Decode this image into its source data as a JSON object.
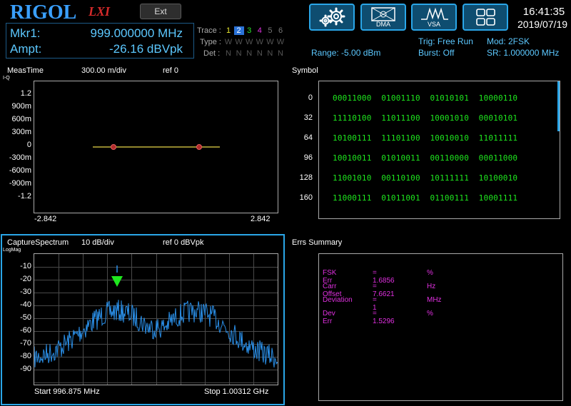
{
  "brand": {
    "logo": "RIGOL",
    "lxi": "LXI"
  },
  "topbar": {
    "ext_label": "Ext",
    "buttons": [
      {
        "name": "settings",
        "label": ""
      },
      {
        "name": "dma",
        "label": "DMA"
      },
      {
        "name": "vsa",
        "label": "VSA"
      },
      {
        "name": "layout",
        "label": ""
      }
    ],
    "time": "16:41:35",
    "date": "2019/07/19"
  },
  "marker": {
    "mkr_label": "Mkr1:",
    "mkr_value": "999.000000 MHz",
    "ampt_label": "Ampt:",
    "ampt_value": "-26.16 dBVpk"
  },
  "trace": {
    "trace_label": "Trace :",
    "type_label": "Type :",
    "det_label": "Det :",
    "numbers": [
      "1",
      "2",
      "3",
      "4",
      "5",
      "6"
    ],
    "number_colors": [
      "#e8e830",
      "#2aa6e8",
      "#2ee82e",
      "#e030e0",
      "#777777",
      "#777777"
    ],
    "active_index": 1,
    "types": [
      "W",
      "W",
      "W",
      "W",
      "W",
      "W"
    ],
    "dets": [
      "N",
      "N",
      "N",
      "N",
      "N",
      "N"
    ]
  },
  "status": {
    "range": "Range: -5.00 dBm",
    "trig": "Trig: Free Run",
    "burst": "Burst: Off",
    "mod": "Mod: 2FSK",
    "sr": "SR: 1.000000 MHz"
  },
  "meas_time": {
    "title": "MeasTime",
    "scale": "300.00 m/div",
    "ref": "ref 0",
    "subtitle": "I-Q",
    "yticks": [
      "1.2",
      "900m",
      "600m",
      "300m",
      "0",
      "-300m",
      "-600m",
      "-900m",
      "-1.2"
    ],
    "xmin": "-2.842",
    "xmax": "2.842"
  },
  "symbol": {
    "title": "Symbol",
    "rows": [
      {
        "index": "0",
        "bits": "00011000  01001110  01010101  10000110"
      },
      {
        "index": "32",
        "bits": "11110100  11011100  10001010  00010101"
      },
      {
        "index": "64",
        "bits": "10100111  11101100  10010010  11011111"
      },
      {
        "index": "96",
        "bits": "10010011  01010011  00110000  00011000"
      },
      {
        "index": "128",
        "bits": "11001010  00110100  10111111  10100010"
      },
      {
        "index": "160",
        "bits": "11000111  01011001  01100111  10001111"
      }
    ]
  },
  "capture": {
    "title": "CaptureSpectrum",
    "scale": "10 dB/div",
    "ref": "ref 0 dBVpk",
    "subtitle": "LogMag",
    "yticks": [
      "-10",
      "-20",
      "-30",
      "-40",
      "-50",
      "-60",
      "-70",
      "-80",
      "-90"
    ],
    "start": "Start 996.875 MHz",
    "stop": "Stop 1.00312 GHz"
  },
  "errors": {
    "title": "Errs Summary",
    "rows": [
      {
        "label": "FSK Err",
        "value": "= 1.6856",
        "unit": "%"
      },
      {
        "label": "Carr Offset",
        "value": "= 7.6621",
        "unit": "Hz"
      },
      {
        "label": "Deviation",
        "value": "= 1",
        "unit": "MHz"
      },
      {
        "label": "Dev Err",
        "value": "= 1.5296",
        "unit": "%"
      }
    ]
  }
}
